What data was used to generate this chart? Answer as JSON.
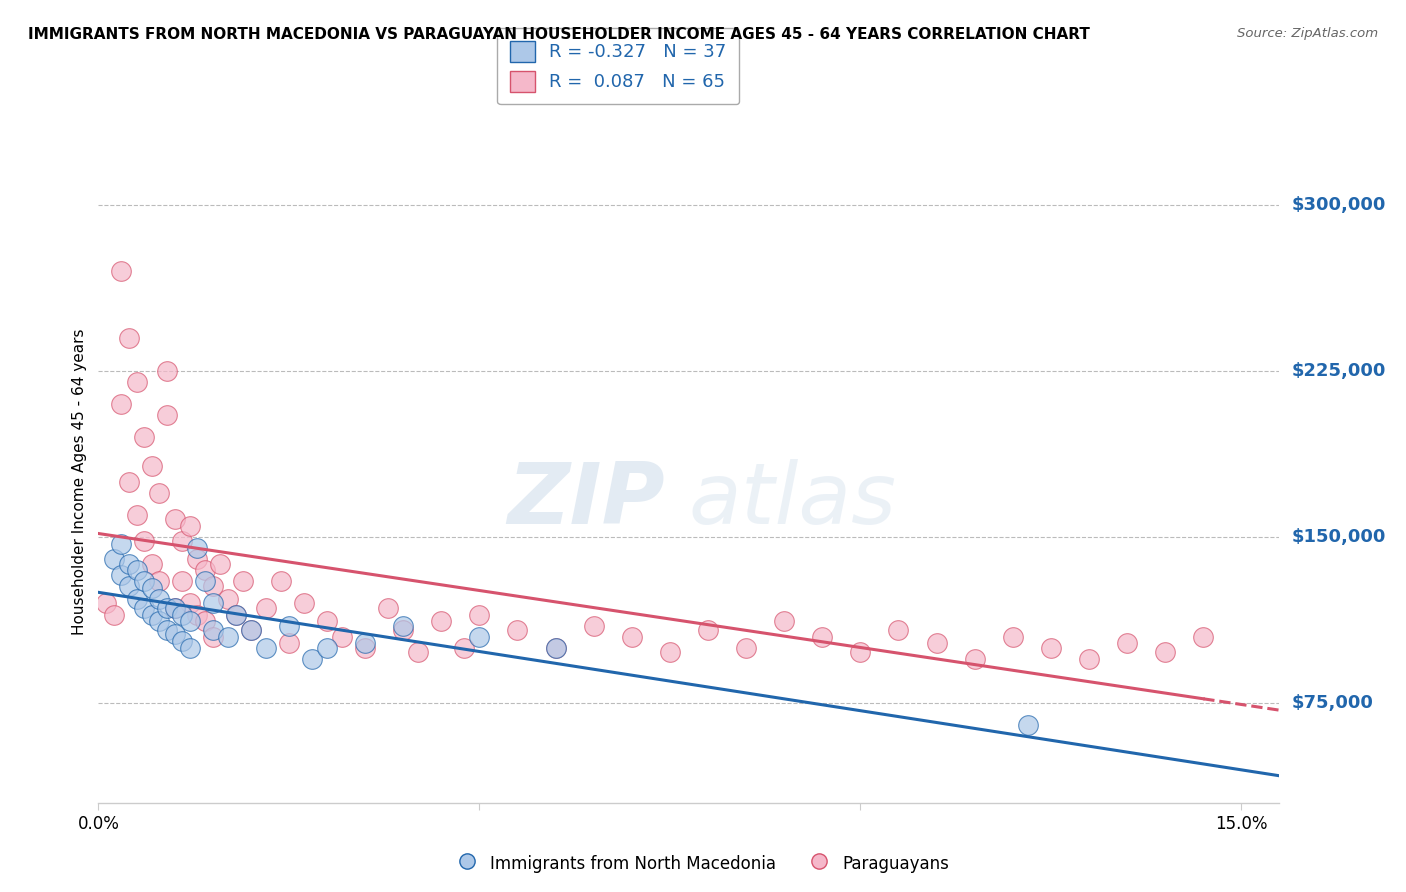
{
  "title": "IMMIGRANTS FROM NORTH MACEDONIA VS PARAGUAYAN HOUSEHOLDER INCOME AGES 45 - 64 YEARS CORRELATION CHART",
  "source": "Source: ZipAtlas.com",
  "ylabel": "Householder Income Ages 45 - 64 years",
  "xlim": [
    0.0,
    0.155
  ],
  "ylim": [
    30000,
    320000
  ],
  "yticks": [
    75000,
    150000,
    225000,
    300000
  ],
  "ytick_labels": [
    "$75,000",
    "$150,000",
    "$225,000",
    "$300,000"
  ],
  "xticks": [
    0.0,
    0.05,
    0.1,
    0.15
  ],
  "xtick_labels": [
    "0.0%",
    "",
    "",
    "15.0%"
  ],
  "blue_R": -0.327,
  "blue_N": 37,
  "pink_R": 0.087,
  "pink_N": 65,
  "blue_color": "#adc8e8",
  "pink_color": "#f5b8ca",
  "blue_line_color": "#2166ac",
  "pink_line_color": "#d6536d",
  "watermark_zip": "ZIP",
  "watermark_atlas": "atlas",
  "blue_scatter_x": [
    0.002,
    0.003,
    0.003,
    0.004,
    0.004,
    0.005,
    0.005,
    0.006,
    0.006,
    0.007,
    0.007,
    0.008,
    0.008,
    0.009,
    0.009,
    0.01,
    0.01,
    0.011,
    0.011,
    0.012,
    0.012,
    0.013,
    0.014,
    0.015,
    0.015,
    0.017,
    0.018,
    0.02,
    0.022,
    0.025,
    0.028,
    0.03,
    0.035,
    0.04,
    0.05,
    0.06,
    0.122
  ],
  "blue_scatter_y": [
    140000,
    133000,
    147000,
    128000,
    138000,
    122000,
    135000,
    118000,
    130000,
    115000,
    127000,
    112000,
    122000,
    108000,
    118000,
    106000,
    118000,
    103000,
    115000,
    100000,
    112000,
    145000,
    130000,
    120000,
    108000,
    105000,
    115000,
    108000,
    100000,
    110000,
    95000,
    100000,
    102000,
    110000,
    105000,
    100000,
    65000
  ],
  "pink_scatter_x": [
    0.001,
    0.002,
    0.003,
    0.003,
    0.004,
    0.004,
    0.005,
    0.005,
    0.006,
    0.006,
    0.007,
    0.007,
    0.008,
    0.008,
    0.009,
    0.009,
    0.01,
    0.01,
    0.011,
    0.011,
    0.012,
    0.012,
    0.013,
    0.013,
    0.014,
    0.014,
    0.015,
    0.015,
    0.016,
    0.017,
    0.018,
    0.019,
    0.02,
    0.022,
    0.024,
    0.025,
    0.027,
    0.03,
    0.032,
    0.035,
    0.038,
    0.04,
    0.042,
    0.045,
    0.048,
    0.05,
    0.055,
    0.06,
    0.065,
    0.07,
    0.075,
    0.08,
    0.085,
    0.09,
    0.095,
    0.1,
    0.105,
    0.11,
    0.115,
    0.12,
    0.125,
    0.13,
    0.135,
    0.14,
    0.145
  ],
  "pink_scatter_y": [
    120000,
    115000,
    270000,
    210000,
    240000,
    175000,
    220000,
    160000,
    195000,
    148000,
    182000,
    138000,
    170000,
    130000,
    205000,
    225000,
    158000,
    118000,
    148000,
    130000,
    155000,
    120000,
    140000,
    115000,
    135000,
    112000,
    128000,
    105000,
    138000,
    122000,
    115000,
    130000,
    108000,
    118000,
    130000,
    102000,
    120000,
    112000,
    105000,
    100000,
    118000,
    108000,
    98000,
    112000,
    100000,
    115000,
    108000,
    100000,
    110000,
    105000,
    98000,
    108000,
    100000,
    112000,
    105000,
    98000,
    108000,
    102000,
    95000,
    105000,
    100000,
    95000,
    102000,
    98000,
    105000
  ]
}
